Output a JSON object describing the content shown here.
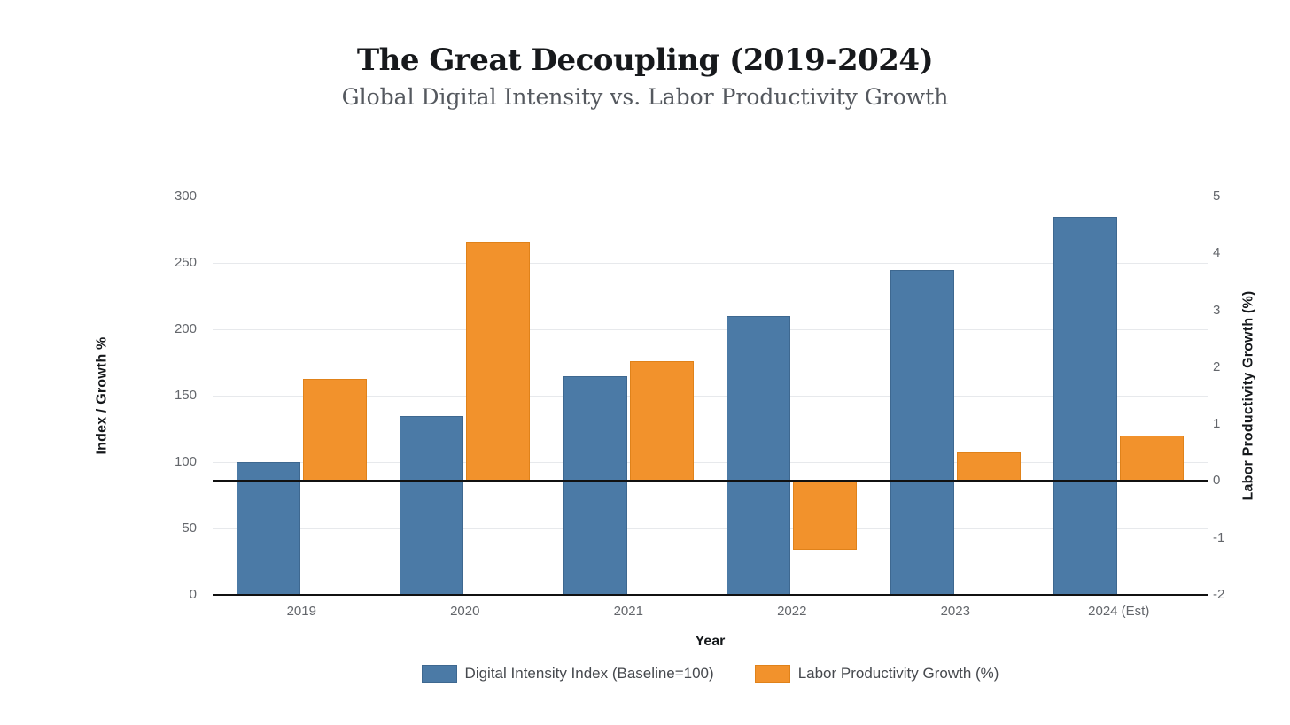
{
  "chart_data": {
    "type": "bar",
    "title": "The Great Decoupling (2019-2024)",
    "subtitle": "Global Digital Intensity vs. Labor Productivity Growth",
    "categories": [
      "2019",
      "2020",
      "2021",
      "2022",
      "2023",
      "2024 (Est)"
    ],
    "series": [
      {
        "name": "Digital Intensity Index (Baseline=100)",
        "axis": "left",
        "color": "#4B7AA6",
        "border_color": "#3E6890",
        "values": [
          100,
          135,
          165,
          210,
          245,
          285
        ]
      },
      {
        "name": "Labor Productivity Growth (%)",
        "axis": "right",
        "color": "#F2922C",
        "border_color": "#E0821A",
        "values": [
          1.8,
          4.2,
          2.1,
          -1.2,
          0.5,
          0.8
        ]
      }
    ],
    "xlabel": "Year",
    "left_axis": {
      "label": "Index / Growth %",
      "min": 0,
      "max": 300,
      "ticks": [
        0,
        50,
        100,
        150,
        200,
        250,
        300
      ]
    },
    "right_axis": {
      "label": "Labor Productivity Growth (%)",
      "min": -2,
      "max": 5,
      "ticks": [
        -2,
        -1,
        0,
        1,
        2,
        3,
        4,
        5
      ]
    },
    "grid": "horizontal",
    "grid_color": "#e7e9ec",
    "zero_line_color": "#111111",
    "legend_position": "bottom",
    "background": "#ffffff"
  }
}
